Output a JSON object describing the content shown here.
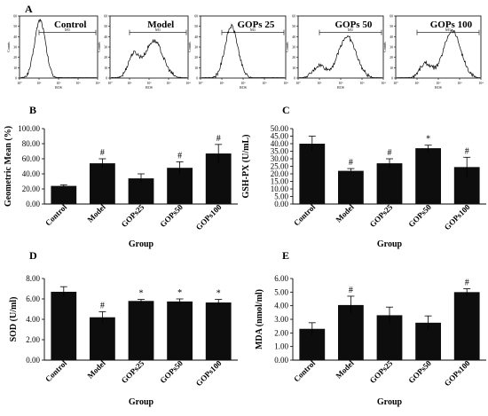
{
  "flow_panel": {
    "letter": "A",
    "y_axis_label": "Counts",
    "x_axis_label": "ROS",
    "gate_label": "M1",
    "y_ticks": [
      "0",
      "10",
      "20",
      "30",
      "40",
      "50",
      "60"
    ],
    "x_ticks": [
      "10⁰",
      "10¹",
      "10²",
      "10³",
      "10⁴"
    ],
    "plots": [
      {
        "title": "Control",
        "peak_decade": 1.05,
        "spread": 0.28,
        "peak_height": 56,
        "secondary": null
      },
      {
        "title": "Model",
        "peak_decade": 2.25,
        "spread": 0.45,
        "peak_height": 36,
        "secondary": {
          "decade": 1.2,
          "height": 22
        }
      },
      {
        "title": "GOPs 25",
        "peak_decade": 1.45,
        "spread": 0.3,
        "peak_height": 50,
        "secondary": null
      },
      {
        "title": "GOPs 50",
        "peak_decade": 2.3,
        "spread": 0.42,
        "peak_height": 40,
        "secondary": {
          "decade": 1.0,
          "height": 12
        }
      },
      {
        "title": "GOPs 100",
        "peak_decade": 2.65,
        "spread": 0.4,
        "peak_height": 46,
        "secondary": {
          "decade": 1.4,
          "height": 14
        }
      }
    ]
  },
  "chart_data": [
    {
      "type": "bar",
      "letter": "B",
      "categories": [
        "Control",
        "Model",
        "GOPs25",
        "GOPs50",
        "GOPs100"
      ],
      "values": [
        24,
        54,
        34,
        48,
        67
      ],
      "errors": [
        1.5,
        6,
        6,
        8,
        12
      ],
      "markers": [
        "",
        "#",
        "",
        "#",
        "#"
      ],
      "xlabel": "Group",
      "ylabel": "Geometric Mean (%)",
      "ylim": [
        0,
        100
      ],
      "yticks": [
        "0.00",
        "20.00",
        "40.00",
        "60.00",
        "80.00",
        "100.00"
      ],
      "ytick_step": 20,
      "grid": false
    },
    {
      "type": "bar",
      "letter": "C",
      "categories": [
        "Control",
        "Model",
        "GOPs25",
        "GOPs50",
        "GOPs100"
      ],
      "values": [
        40,
        22,
        27,
        37,
        24.5
      ],
      "errors": [
        5,
        1.5,
        3,
        2,
        6.5
      ],
      "markers": [
        "",
        "#",
        "#",
        "*",
        "#"
      ],
      "xlabel": "Group",
      "ylabel": "GSH-PX (U/mL)",
      "ylim": [
        0,
        50
      ],
      "yticks": [
        "0.00",
        "5.00",
        "10.00",
        "15.00",
        "20.00",
        "25.00",
        "30.00",
        "35.00",
        "40.00",
        "45.00",
        "50.00"
      ],
      "ytick_step": 5,
      "grid": false
    },
    {
      "type": "bar",
      "letter": "D",
      "categories": [
        "Control",
        "Model",
        "GOPs25",
        "GOPs50",
        "GOPs100"
      ],
      "values": [
        6.7,
        4.2,
        5.8,
        5.75,
        5.65
      ],
      "errors": [
        0.5,
        0.55,
        0.15,
        0.25,
        0.3
      ],
      "markers": [
        "",
        "#",
        "*",
        "*",
        "*"
      ],
      "xlabel": "Group",
      "ylabel": "SOD (U/ml)",
      "ylim": [
        0,
        8
      ],
      "yticks": [
        "0.00",
        "2.00",
        "4.00",
        "6.00",
        "8.00"
      ],
      "ytick_step": 2,
      "grid": false
    },
    {
      "type": "bar",
      "letter": "E",
      "categories": [
        "Control",
        "Model",
        "GOPs25",
        "GOPs50",
        "GOPs100"
      ],
      "values": [
        2.3,
        4.05,
        3.3,
        2.75,
        5.0
      ],
      "errors": [
        0.45,
        0.65,
        0.6,
        0.5,
        0.25
      ],
      "markers": [
        "",
        "#",
        "",
        "",
        "#"
      ],
      "xlabel": "Group",
      "ylabel": "MDA (nmol/ml)",
      "ylim": [
        0,
        6
      ],
      "yticks": [
        "0.00",
        "1.00",
        "2.00",
        "3.00",
        "4.00",
        "5.00",
        "6.00"
      ],
      "ytick_step": 1,
      "grid": false
    }
  ]
}
